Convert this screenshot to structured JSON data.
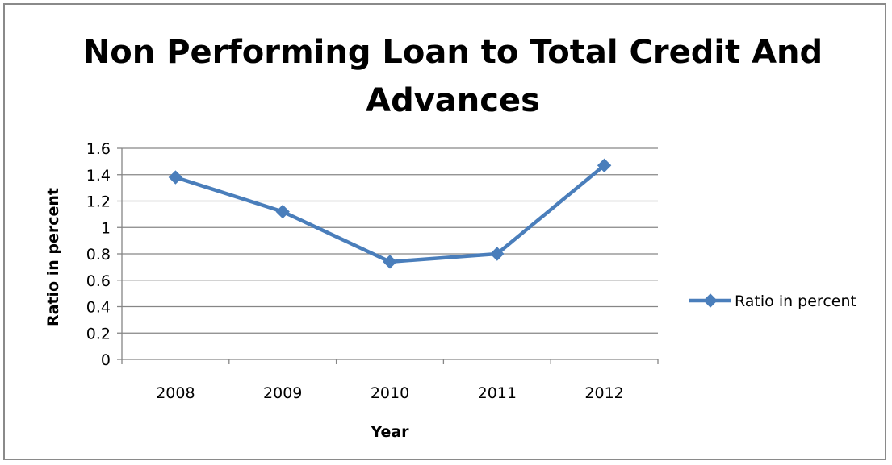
{
  "chart_data": {
    "type": "line",
    "title_lines": [
      "Non Performing Loan to Total Credit And",
      "Advances"
    ],
    "xlabel": "Year",
    "ylabel": "Ratio in percent",
    "categories": [
      "2008",
      "2009",
      "2010",
      "2011",
      "2012"
    ],
    "yticks": [
      "0",
      "0.2",
      "0.4",
      "0.6",
      "0.8",
      "1",
      "1.2",
      "1.4",
      "1.6"
    ],
    "ylim": [
      0,
      1.6
    ],
    "grid": true,
    "legend_position": "right",
    "series": [
      {
        "name": "Ratio in percent",
        "values": [
          1.38,
          1.12,
          0.74,
          0.8,
          1.47
        ],
        "color": "#4a7ebb"
      }
    ]
  }
}
